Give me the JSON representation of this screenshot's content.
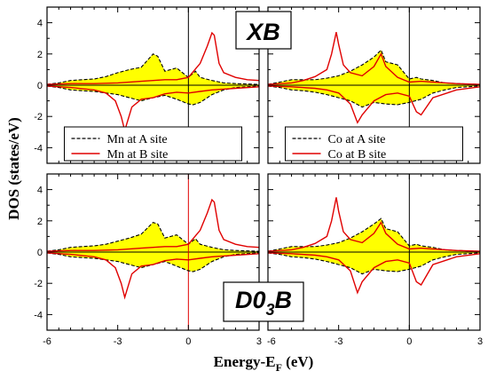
{
  "figure": {
    "ylabel": "DOS (states/eV)",
    "xlabel_main": "Energy-E",
    "xlabel_sub": "F",
    "xlabel_unit": " (eV)",
    "tag_top": "XB",
    "tag_bottom_main": "D0",
    "tag_bottom_sub": "3",
    "tag_bottom_end": "B",
    "colors": {
      "fill": "#ffff00",
      "dashed": "#000000",
      "solid": "#e00000",
      "frame": "#000000"
    }
  },
  "chart_data": [
    {
      "type": "area",
      "panel": "top-left",
      "xlim": [
        -6,
        3
      ],
      "ylim": [
        -5,
        5
      ],
      "xticks": [
        -6,
        -3,
        0,
        3
      ],
      "yticks": [
        -4,
        -2,
        0,
        2,
        4
      ],
      "fermi_line_color": "#000000",
      "legend": {
        "placement": "bottom",
        "entries": [
          "Mn at A site",
          "Mn at B site"
        ]
      },
      "series": [
        {
          "name": "Mn at A site",
          "style": "dashed-filled",
          "spin": "up",
          "x": [
            -6,
            -5.5,
            -5,
            -4.5,
            -4,
            -3.5,
            -3,
            -2.5,
            -2,
            -1.5,
            -1.3,
            -1,
            -0.5,
            0,
            0.3,
            0.5,
            1,
            1.5,
            2,
            3
          ],
          "y": [
            0.05,
            0.15,
            0.3,
            0.35,
            0.4,
            0.55,
            0.8,
            1.0,
            1.15,
            2.0,
            1.85,
            0.9,
            1.1,
            0.5,
            0.9,
            0.5,
            0.3,
            0.15,
            0.1,
            0.05
          ]
        },
        {
          "name": "Mn at A site",
          "style": "dashed-filled",
          "spin": "down",
          "x": [
            -6,
            -5.5,
            -5,
            -4.5,
            -4,
            -3.5,
            -3,
            -2.5,
            -2,
            -1.5,
            -1,
            -0.5,
            0,
            0.2,
            0.5,
            1,
            1.5,
            2,
            3
          ],
          "y": [
            -0.05,
            -0.15,
            -0.3,
            -0.35,
            -0.4,
            -0.5,
            -0.6,
            -0.8,
            -1.0,
            -0.8,
            -0.65,
            -0.9,
            -1.2,
            -1.25,
            -1.1,
            -0.6,
            -0.3,
            -0.15,
            -0.05
          ]
        },
        {
          "name": "Mn at B site",
          "style": "solid",
          "spin": "up",
          "x": [
            -6,
            -5,
            -4,
            -3,
            -2,
            -1,
            -0.5,
            0,
            0.5,
            0.8,
            1,
            1.1,
            1.3,
            1.5,
            2,
            2.5,
            3
          ],
          "y": [
            0.05,
            0.1,
            0.1,
            0.15,
            0.25,
            0.35,
            0.35,
            0.5,
            1.4,
            2.5,
            3.35,
            3.2,
            1.4,
            0.8,
            0.5,
            0.35,
            0.3
          ]
        },
        {
          "name": "Mn at B site",
          "style": "solid",
          "spin": "down",
          "x": [
            -6,
            -5,
            -4,
            -3.5,
            -3.1,
            -2.85,
            -2.7,
            -2.4,
            -2,
            -1.5,
            -1,
            -0.5,
            0,
            0.5,
            1,
            2,
            3
          ],
          "y": [
            -0.05,
            -0.15,
            -0.3,
            -0.5,
            -1.0,
            -2.0,
            -2.9,
            -1.4,
            -0.9,
            -0.8,
            -0.55,
            -0.45,
            -0.5,
            -0.4,
            -0.3,
            -0.2,
            -0.1
          ]
        }
      ]
    },
    {
      "type": "area",
      "panel": "top-right",
      "xlim": [
        -6,
        3
      ],
      "ylim": [
        -5,
        5
      ],
      "xticks": [
        -6,
        -3,
        0,
        3
      ],
      "yticks": [
        -4,
        -2,
        0,
        2,
        4
      ],
      "fermi_line_color": "#000000",
      "legend": {
        "placement": "bottom",
        "entries": [
          "Co at A site",
          "Co at B site"
        ]
      },
      "series": [
        {
          "name": "Co at A site",
          "style": "dashed-filled",
          "spin": "up",
          "x": [
            -6,
            -5.5,
            -5,
            -4.5,
            -4,
            -3.5,
            -3,
            -2.5,
            -2,
            -1.5,
            -1.2,
            -1,
            -0.5,
            0,
            0.3,
            0.5,
            1,
            1.5,
            2,
            3
          ],
          "y": [
            0.05,
            0.2,
            0.35,
            0.35,
            0.35,
            0.45,
            0.6,
            0.9,
            1.3,
            1.8,
            2.25,
            1.5,
            1.3,
            0.4,
            0.5,
            0.4,
            0.3,
            0.15,
            0.1,
            0.05
          ]
        },
        {
          "name": "Co at A site",
          "style": "dashed-filled",
          "spin": "down",
          "x": [
            -6,
            -5.5,
            -5,
            -4.5,
            -4,
            -3.5,
            -3,
            -2.5,
            -2,
            -1.5,
            -1,
            -0.5,
            0,
            0.5,
            1,
            1.5,
            2,
            3
          ],
          "y": [
            -0.05,
            -0.15,
            -0.3,
            -0.35,
            -0.45,
            -0.6,
            -0.8,
            -1.0,
            -1.4,
            -1.1,
            -1.2,
            -1.25,
            -1.1,
            -0.9,
            -0.5,
            -0.3,
            -0.15,
            -0.05
          ]
        },
        {
          "name": "Co at B site",
          "style": "solid",
          "spin": "up",
          "x": [
            -6,
            -5,
            -4.5,
            -4,
            -3.5,
            -3.3,
            -3.1,
            -3.0,
            -2.8,
            -2.5,
            -2,
            -1.5,
            -1.2,
            -1,
            -0.5,
            0,
            0.5,
            1,
            2,
            3
          ],
          "y": [
            0.05,
            0.15,
            0.3,
            0.55,
            1.0,
            2.0,
            3.4,
            2.6,
            1.3,
            0.8,
            0.6,
            1.2,
            2.0,
            1.2,
            0.5,
            0.2,
            0.25,
            0.2,
            0.1,
            0.05
          ]
        },
        {
          "name": "Co at B site",
          "style": "solid",
          "spin": "down",
          "x": [
            -6,
            -5,
            -4,
            -3.5,
            -3,
            -2.5,
            -2.2,
            -2,
            -1.5,
            -1,
            -0.5,
            0,
            0.3,
            0.5,
            1,
            2,
            3
          ],
          "y": [
            -0.05,
            -0.1,
            -0.2,
            -0.3,
            -0.5,
            -1.2,
            -2.4,
            -1.9,
            -1.0,
            -0.6,
            -0.5,
            -0.7,
            -1.7,
            -1.9,
            -0.8,
            -0.3,
            -0.1
          ]
        }
      ]
    },
    {
      "type": "area",
      "panel": "bottom-left",
      "xlim": [
        -6,
        3
      ],
      "ylim": [
        -5,
        5
      ],
      "xticks": [
        -6,
        -3,
        0,
        3
      ],
      "yticks": [
        -4,
        -2,
        0,
        2,
        4
      ],
      "fermi_line_color": "#e00000",
      "series": [
        {
          "name": "Mn at A site",
          "style": "dashed-filled",
          "spin": "up",
          "x": [
            -6,
            -5.5,
            -5,
            -4.5,
            -4,
            -3.5,
            -3,
            -2.5,
            -2,
            -1.5,
            -1.3,
            -1,
            -0.5,
            0,
            0.3,
            0.5,
            1,
            1.5,
            2,
            3
          ],
          "y": [
            0.05,
            0.15,
            0.3,
            0.35,
            0.4,
            0.5,
            0.7,
            0.9,
            1.15,
            1.9,
            1.8,
            0.9,
            1.1,
            0.5,
            0.85,
            0.5,
            0.3,
            0.15,
            0.1,
            0.05
          ]
        },
        {
          "name": "Mn at A site",
          "style": "dashed-filled",
          "spin": "down",
          "x": [
            -6,
            -5.5,
            -5,
            -4.5,
            -4,
            -3.5,
            -3,
            -2.5,
            -2,
            -1.5,
            -1,
            -0.5,
            0,
            0.2,
            0.5,
            1,
            1.5,
            2,
            3
          ],
          "y": [
            -0.05,
            -0.15,
            -0.3,
            -0.35,
            -0.4,
            -0.5,
            -0.6,
            -0.8,
            -1.0,
            -0.8,
            -0.6,
            -0.9,
            -1.2,
            -1.25,
            -1.1,
            -0.6,
            -0.3,
            -0.15,
            -0.05
          ]
        },
        {
          "name": "Mn at B site",
          "style": "solid",
          "spin": "up",
          "x": [
            -6,
            -5,
            -4,
            -3,
            -2,
            -1,
            -0.5,
            0,
            0.5,
            0.8,
            1,
            1.1,
            1.3,
            1.5,
            2,
            2.5,
            3
          ],
          "y": [
            0.05,
            0.1,
            0.1,
            0.15,
            0.25,
            0.35,
            0.35,
            0.5,
            1.4,
            2.5,
            3.35,
            3.2,
            1.4,
            0.8,
            0.5,
            0.35,
            0.3
          ]
        },
        {
          "name": "Mn at B site",
          "style": "solid",
          "spin": "down",
          "x": [
            -6,
            -5,
            -4,
            -3.5,
            -3.1,
            -2.85,
            -2.7,
            -2.4,
            -2,
            -1.5,
            -1,
            -0.5,
            0,
            0.5,
            1,
            2,
            3
          ],
          "y": [
            -0.05,
            -0.15,
            -0.3,
            -0.5,
            -1.0,
            -2.0,
            -2.9,
            -1.4,
            -0.9,
            -0.8,
            -0.55,
            -0.45,
            -0.5,
            -0.4,
            -0.3,
            -0.2,
            -0.1
          ]
        }
      ]
    },
    {
      "type": "area",
      "panel": "bottom-right",
      "xlim": [
        -6,
        3
      ],
      "ylim": [
        -5,
        5
      ],
      "xticks": [
        -6,
        -3,
        0,
        3
      ],
      "yticks": [
        -4,
        -2,
        0,
        2,
        4
      ],
      "fermi_line_color": "#000000",
      "series": [
        {
          "name": "Co at A site",
          "style": "dashed-filled",
          "spin": "up",
          "x": [
            -6,
            -5.5,
            -5,
            -4.5,
            -4,
            -3.5,
            -3,
            -2.5,
            -2,
            -1.5,
            -1.2,
            -1,
            -0.5,
            0,
            0.3,
            0.5,
            1,
            1.5,
            2,
            3
          ],
          "y": [
            0.05,
            0.2,
            0.35,
            0.35,
            0.35,
            0.45,
            0.6,
            0.9,
            1.3,
            1.8,
            2.15,
            1.5,
            1.3,
            0.4,
            0.5,
            0.4,
            0.3,
            0.15,
            0.1,
            0.05
          ]
        },
        {
          "name": "Co at A site",
          "style": "dashed-filled",
          "spin": "down",
          "x": [
            -6,
            -5.5,
            -5,
            -4.5,
            -4,
            -3.5,
            -3,
            -2.5,
            -2,
            -1.5,
            -1,
            -0.5,
            0,
            0.5,
            1,
            1.5,
            2,
            3
          ],
          "y": [
            -0.05,
            -0.15,
            -0.3,
            -0.35,
            -0.45,
            -0.6,
            -0.8,
            -1.0,
            -1.4,
            -1.1,
            -1.2,
            -1.25,
            -1.1,
            -0.9,
            -0.5,
            -0.3,
            -0.15,
            -0.05
          ]
        },
        {
          "name": "Co at B site",
          "style": "solid",
          "spin": "up",
          "x": [
            -6,
            -5,
            -4.5,
            -4,
            -3.5,
            -3.3,
            -3.1,
            -3.0,
            -2.8,
            -2.5,
            -2,
            -1.5,
            -1.2,
            -1,
            -0.5,
            0,
            0.5,
            1,
            2,
            3
          ],
          "y": [
            0.05,
            0.15,
            0.3,
            0.55,
            1.0,
            2.0,
            3.5,
            2.6,
            1.3,
            0.8,
            0.6,
            1.2,
            1.9,
            1.2,
            0.5,
            0.2,
            0.25,
            0.2,
            0.1,
            0.05
          ]
        },
        {
          "name": "Co at B site",
          "style": "solid",
          "spin": "down",
          "x": [
            -6,
            -5,
            -4,
            -3.5,
            -3,
            -2.5,
            -2.2,
            -2,
            -1.5,
            -1,
            -0.5,
            0,
            0.3,
            0.5,
            1,
            2,
            3
          ],
          "y": [
            -0.05,
            -0.1,
            -0.2,
            -0.3,
            -0.5,
            -1.2,
            -2.6,
            -1.9,
            -1.0,
            -0.6,
            -0.5,
            -0.7,
            -1.9,
            -2.1,
            -0.8,
            -0.3,
            -0.1
          ]
        }
      ]
    }
  ]
}
